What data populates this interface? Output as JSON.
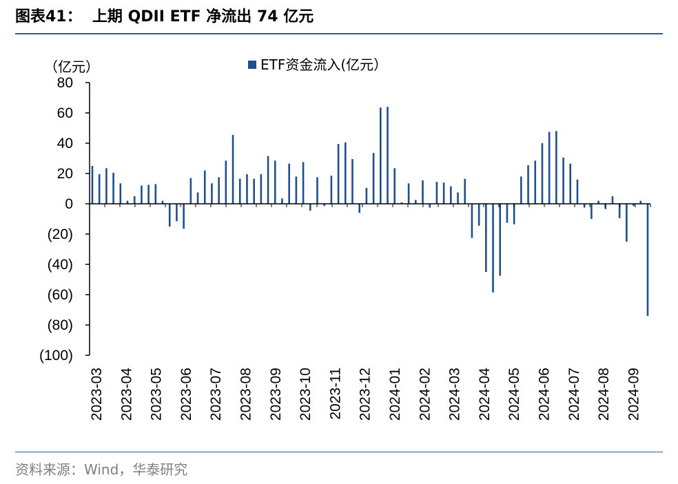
{
  "figure": {
    "title": "图表41：  上期 QDII ETF 净流出 74 亿元",
    "source": "资料来源：Wind，华泰研究"
  },
  "colors": {
    "bar": "#1f4e8c",
    "rule": "#2d5a8c",
    "axis": "#000000"
  },
  "chart_data": {
    "type": "bar",
    "unit_label": "（亿元）",
    "legend": "ETF资金流入(亿元）",
    "legend_position": "top-center",
    "grid": false,
    "ylim": [
      -100,
      80
    ],
    "yticks": [
      80,
      60,
      40,
      20,
      0,
      -20,
      -40,
      -60,
      -80,
      -100
    ],
    "ytick_labels": [
      "80",
      "60",
      "40",
      "20",
      "0",
      "(20)",
      "(40)",
      "(60)",
      "(80)",
      "(100)"
    ],
    "month_labels": [
      "2023-03",
      "2023-04",
      "2023-05",
      "2023-06",
      "2023-07",
      "2023-08",
      "2023-09",
      "2023-10",
      "2023-11",
      "2023-12",
      "2024-01",
      "2024-02",
      "2024-03",
      "2024-04",
      "2024-05",
      "2024-06",
      "2024-07",
      "2024-08",
      "2024-09"
    ],
    "series": [
      {
        "values": [
          25,
          19.5,
          23.5,
          20.5,
          13.5,
          2,
          5,
          12,
          12.5,
          13,
          2,
          -15,
          -11.5,
          -16.5,
          17,
          7.5,
          22,
          13.5,
          17.5,
          28.5,
          45.5,
          16.5,
          19.5,
          16.5,
          19.5,
          31.5,
          28.5,
          3.5,
          26.5,
          18,
          27.5,
          -4.5,
          17.5,
          -1.5,
          18.5,
          39.5,
          40.5,
          29.5,
          -6,
          10.5,
          33.5,
          63.5,
          64,
          23.5,
          1,
          13.5,
          2.5,
          15.5,
          -2.5,
          14.5,
          14,
          11.5,
          7.5,
          16.5,
          -22.5,
          -14.5,
          -45,
          -58.5,
          -47.5,
          -12.5,
          -13.5,
          18,
          25.5,
          28.5,
          40,
          47.5,
          48,
          30.5,
          26.5,
          16,
          -2.5,
          -10,
          2,
          -3.5,
          5,
          -9.5,
          -25,
          -1.5,
          2,
          -74
        ]
      }
    ]
  }
}
